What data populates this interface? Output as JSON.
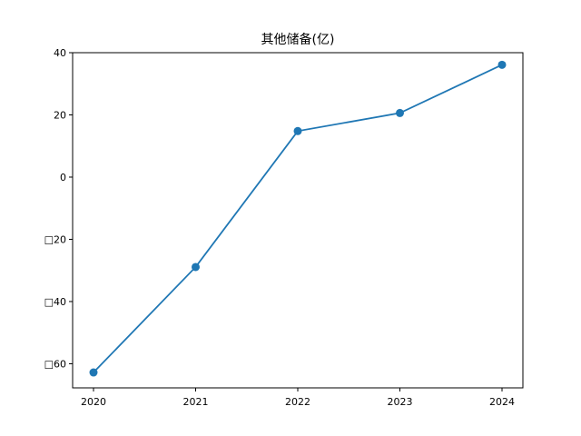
{
  "chart_data": {
    "type": "line",
    "title": "其他储备(亿)",
    "xlabel": "",
    "ylabel": "",
    "categories": [
      "2020",
      "2021",
      "2022",
      "2023",
      "2024"
    ],
    "series": [
      {
        "values": [
          -62.8,
          -28.9,
          14.8,
          20.6,
          36.1
        ]
      }
    ],
    "ylim": [
      -67.75,
      40.0
    ],
    "yticks": [
      40,
      20,
      0,
      -20,
      -40,
      -60
    ],
    "ytick_labels": [
      "40",
      "20",
      "0",
      "□20",
      "□40",
      "□60"
    ],
    "grid": false,
    "line_color": "#1f77b4"
  }
}
